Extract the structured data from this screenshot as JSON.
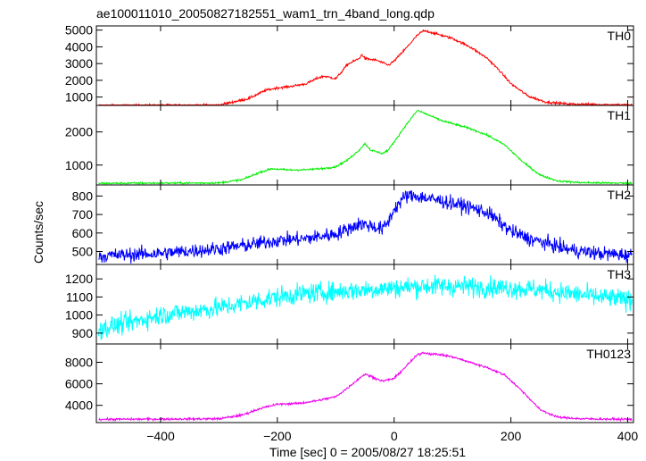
{
  "chart_data": {
    "type": "line",
    "title": "ae100011010_20050827182551_wam1_trn_4band_long.qdp",
    "xlabel": "Time [sec] 0 = 2005/08/27 18:25:51",
    "ylabel": "Counts/sec",
    "xlim": [
      -510,
      410
    ],
    "x_ticks": [
      -400,
      -200,
      0,
      200,
      400
    ],
    "panels": [
      {
        "name": "TH0",
        "color": "#ff0000",
        "ylim": [
          500,
          5250
        ],
        "y_ticks": [
          1000,
          2000,
          3000,
          4000,
          5000
        ],
        "noise": 70,
        "x": [
          -510,
          -300,
          -250,
          -220,
          -200,
          -180,
          -150,
          -130,
          -120,
          -100,
          -90,
          -80,
          -60,
          -55,
          -50,
          -30,
          -10,
          0,
          20,
          40,
          50,
          60,
          80,
          100,
          130,
          160,
          180,
          200,
          230,
          260,
          300,
          350,
          410
        ],
        "values": [
          500,
          520,
          900,
          1400,
          1550,
          1620,
          1800,
          2150,
          2250,
          2100,
          2500,
          2950,
          3300,
          3550,
          3300,
          3200,
          2900,
          3150,
          3900,
          4700,
          4950,
          4900,
          4700,
          4500,
          4000,
          3300,
          2600,
          1800,
          1050,
          700,
          580,
          560,
          520
        ]
      },
      {
        "name": "TH1",
        "color": "#00ee00",
        "ylim": [
          400,
          2800
        ],
        "y_ticks": [
          1000,
          2000
        ],
        "noise": 28,
        "x": [
          -510,
          -300,
          -260,
          -230,
          -210,
          -180,
          -150,
          -120,
          -100,
          -80,
          -60,
          -50,
          -40,
          -20,
          -10,
          0,
          20,
          40,
          50,
          60,
          80,
          100,
          130,
          160,
          190,
          220,
          250,
          280,
          320,
          410
        ],
        "values": [
          450,
          460,
          560,
          780,
          890,
          850,
          860,
          900,
          950,
          1150,
          1450,
          1650,
          1450,
          1350,
          1450,
          1700,
          2200,
          2650,
          2580,
          2500,
          2350,
          2250,
          2100,
          1900,
          1600,
          1100,
          700,
          520,
          470,
          450
        ]
      },
      {
        "name": "TH2",
        "color": "#0000ff",
        "ylim": [
          430,
          860
        ],
        "y_ticks": [
          500,
          600,
          700,
          800
        ],
        "noise": 38,
        "x": [
          -510,
          -400,
          -300,
          -250,
          -200,
          -150,
          -100,
          -80,
          -60,
          -40,
          -20,
          -10,
          0,
          20,
          40,
          60,
          80,
          100,
          130,
          160,
          180,
          200,
          230,
          260,
          300,
          350,
          410
        ],
        "values": [
          475,
          490,
          515,
          535,
          560,
          570,
          595,
          620,
          650,
          640,
          620,
          660,
          730,
          800,
          800,
          785,
          775,
          760,
          740,
          710,
          660,
          610,
          570,
          545,
          510,
          490,
          480
        ]
      },
      {
        "name": "TH3",
        "color": "#00ffff",
        "ylim": [
          840,
          1280
        ],
        "y_ticks": [
          900,
          1000,
          1100,
          1200
        ],
        "noise": 55,
        "x": [
          -510,
          -450,
          -400,
          -350,
          -300,
          -250,
          -200,
          -150,
          -100,
          -50,
          0,
          50,
          100,
          150,
          200,
          250,
          300,
          350,
          410
        ],
        "values": [
          920,
          960,
          1000,
          1020,
          1040,
          1070,
          1100,
          1120,
          1130,
          1140,
          1150,
          1160,
          1160,
          1155,
          1150,
          1140,
          1120,
          1100,
          1080
        ]
      },
      {
        "name": "TH0123",
        "color": "#ee00ee",
        "ylim": [
          2400,
          9700
        ],
        "y_ticks": [
          4000,
          6000,
          8000
        ],
        "noise": 100,
        "x": [
          -510,
          -300,
          -260,
          -230,
          -200,
          -160,
          -130,
          -100,
          -80,
          -60,
          -50,
          -40,
          -20,
          0,
          20,
          40,
          50,
          60,
          80,
          100,
          130,
          160,
          190,
          220,
          250,
          280,
          320,
          410
        ],
        "values": [
          2700,
          2750,
          3100,
          3700,
          4100,
          4200,
          4450,
          4800,
          5600,
          6500,
          6900,
          6700,
          6250,
          6500,
          7600,
          8700,
          8900,
          8800,
          8700,
          8500,
          8000,
          7500,
          6800,
          5300,
          3600,
          2900,
          2750,
          2700
        ]
      }
    ]
  }
}
